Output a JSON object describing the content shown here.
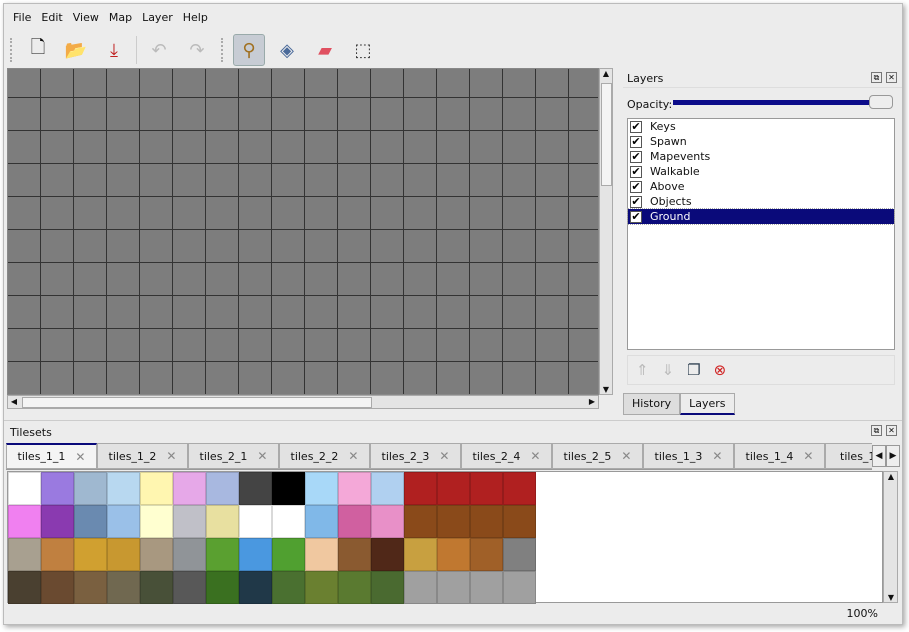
{
  "menu": [
    "File",
    "Edit",
    "View",
    "Map",
    "Layer",
    "Help"
  ],
  "toolbar": [
    {
      "name": "new-icon",
      "glyph": "🗋"
    },
    {
      "name": "open-icon",
      "glyph": "📂"
    },
    {
      "name": "save-icon",
      "glyph": "⤓"
    },
    {
      "name": "undo-icon",
      "glyph": "↶"
    },
    {
      "name": "redo-icon",
      "glyph": "↷"
    },
    {
      "name": "stamp-brush-icon",
      "glyph": "⚲"
    },
    {
      "name": "bucket-fill-icon",
      "glyph": "◈"
    },
    {
      "name": "eraser-icon",
      "glyph": "▰"
    },
    {
      "name": "rect-select-icon",
      "glyph": "⬚"
    }
  ],
  "layers_panel": {
    "title": "Layers",
    "opacity_label": "Opacity:",
    "opacity": 1.0,
    "layers": [
      {
        "name": "Keys",
        "visible": true
      },
      {
        "name": "Spawn",
        "visible": true
      },
      {
        "name": "Mapevents",
        "visible": true
      },
      {
        "name": "Walkable",
        "visible": true
      },
      {
        "name": "Above",
        "visible": true
      },
      {
        "name": "Objects",
        "visible": true
      },
      {
        "name": "Ground",
        "visible": true,
        "selected": true
      }
    ],
    "tabs": [
      "History",
      "Layers"
    ],
    "active_tab": "Layers"
  },
  "tilesets": {
    "title": "Tilesets",
    "tabs": [
      "tiles_1_1",
      "tiles_1_2",
      "tiles_2_1",
      "tiles_2_2",
      "tiles_2_3",
      "tiles_2_4",
      "tiles_2_5",
      "tiles_1_3",
      "tiles_1_4",
      "tiles_1_"
    ],
    "active": 0,
    "tile_colors": [
      [
        "#ffffff",
        "#9a7ae0",
        "#9fb8d0",
        "#b8d8f0",
        "#fff6b0",
        "#e6a8e8",
        "#a8b8e0",
        "#444444",
        "#000000",
        "#a8d8f8",
        "#f4a8d8",
        "#b0d0f0",
        "#b02020",
        "#b02020",
        "#b02020",
        "#b02020"
      ],
      [
        "#f080f0",
        "#8a3ab0",
        "#6a8ab0",
        "#9ac0e8",
        "#ffffd0",
        "#c0c0c8",
        "#e8e0a0",
        "#ffffff",
        "#ffffff",
        "#80b8e8",
        "#d060a0",
        "#e890c8",
        "#8a4a1a",
        "#8a4a1a",
        "#8a4a1a",
        "#8a4a1a"
      ],
      [
        "#a8a090",
        "#c08040",
        "#d0a030",
        "#c89830",
        "#a89880",
        "#909498",
        "#5aa030",
        "#4a98e0",
        "#50a030",
        "#f0c8a0",
        "#8a5a30",
        "#502818",
        "#c8a040",
        "#c07830",
        "#a06028",
        "#808080"
      ],
      [
        "#4a4030",
        "#6a4a30",
        "#7a6040",
        "#706850",
        "#485038",
        "#585858",
        "#3a7020",
        "#203848",
        "#4a7030",
        "#6a8030",
        "#5a7a30",
        "#4a6a30",
        "#a0a0a0",
        "#a0a0a0",
        "#a0a0a0",
        "#a0a0a0"
      ]
    ]
  },
  "status": {
    "zoom": "100%"
  }
}
